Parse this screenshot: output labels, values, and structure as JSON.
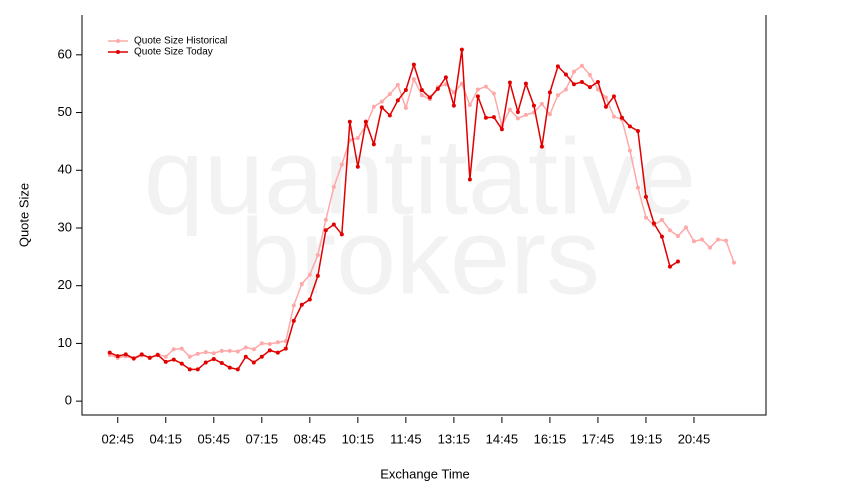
{
  "chart_data": {
    "type": "line",
    "watermark": [
      "quantitative",
      "brokers"
    ],
    "x_label": "Exchange Time",
    "y_label": "Quote Size",
    "x": [
      "02:30",
      "02:45",
      "03:00",
      "03:15",
      "03:30",
      "03:45",
      "04:00",
      "04:15",
      "04:30",
      "04:45",
      "05:00",
      "05:15",
      "05:30",
      "05:45",
      "06:00",
      "06:15",
      "06:30",
      "06:45",
      "07:00",
      "07:15",
      "07:30",
      "07:45",
      "08:00",
      "08:15",
      "08:30",
      "08:45",
      "09:00",
      "09:15",
      "09:30",
      "09:45",
      "10:00",
      "10:15",
      "10:30",
      "10:45",
      "11:00",
      "11:15",
      "11:30",
      "11:45",
      "12:00",
      "12:15",
      "12:30",
      "12:45",
      "13:00",
      "13:15",
      "13:30",
      "13:45",
      "14:00",
      "14:15",
      "14:30",
      "14:45",
      "15:00",
      "15:15",
      "15:30",
      "15:45",
      "16:00",
      "16:15",
      "16:30",
      "16:45",
      "17:00",
      "17:15",
      "17:30",
      "17:45",
      "18:00",
      "18:15",
      "18:30",
      "18:45",
      "19:00",
      "19:15",
      "19:30",
      "19:45",
      "20:00",
      "20:15",
      "20:30",
      "20:45",
      "21:00",
      "21:15",
      "21:30",
      "21:45",
      "22:00"
    ],
    "series": [
      {
        "name": "Quote Size Historical",
        "color": "#ffa8a8",
        "values": [
          8.0,
          7.5,
          7.8,
          7.3,
          7.9,
          7.6,
          8.1,
          7.7,
          9.0,
          9.1,
          7.7,
          8.2,
          8.5,
          8.3,
          8.7,
          8.7,
          8.6,
          9.3,
          9.0,
          10.0,
          9.9,
          10.2,
          10.4,
          16.6,
          20.3,
          21.9,
          25.3,
          31.4,
          37.1,
          41.0,
          45.2,
          45.6,
          47.7,
          51.0,
          51.9,
          53.2,
          54.8,
          50.8,
          55.8,
          53.0,
          52.3,
          54.4,
          54.9,
          53.5,
          55.0,
          51.3,
          54.0,
          54.5,
          53.3,
          47.7,
          50.5,
          49.0,
          49.6,
          50.0,
          51.5,
          49.7,
          53.0,
          54.0,
          57.1,
          58.1,
          56.5,
          54.0,
          52.6,
          49.3,
          48.8,
          43.4,
          37.0,
          31.8,
          30.5,
          31.4,
          29.6,
          28.6,
          30.1,
          27.7,
          28.0,
          26.6,
          28.0,
          27.8,
          24.0
        ]
      },
      {
        "name": "Quote Size Today",
        "color": "#e00000",
        "values": [
          8.4,
          7.8,
          8.1,
          7.4,
          8.1,
          7.5,
          8.0,
          6.8,
          7.2,
          6.5,
          5.5,
          5.5,
          6.7,
          7.3,
          6.6,
          5.8,
          5.5,
          7.7,
          6.7,
          7.7,
          8.8,
          8.4,
          9.1,
          13.9,
          16.7,
          17.6,
          21.7,
          29.6,
          30.6,
          28.9,
          48.4,
          40.6,
          48.4,
          44.5,
          50.9,
          49.5,
          52.1,
          53.9,
          58.3,
          53.9,
          52.6,
          54.1,
          56.1,
          51.2,
          60.9,
          38.4,
          52.8,
          49.1,
          49.2,
          47.1,
          55.2,
          50.1,
          55.0,
          51.2,
          44.1,
          53.5,
          58.0,
          56.6,
          54.9,
          55.3,
          54.4,
          55.3,
          51.0,
          52.8,
          49.1,
          47.6,
          46.8,
          35.4,
          30.8,
          28.5,
          23.3,
          24.2,
          null,
          null,
          null,
          null,
          null,
          null,
          null
        ]
      }
    ],
    "xlim": [
      "01:38",
      "23:00"
    ],
    "xticks": [
      "02:45",
      "04:15",
      "05:45",
      "07:15",
      "08:45",
      "10:15",
      "11:45",
      "13:15",
      "14:45",
      "16:15",
      "17:45",
      "19:15",
      "20:45"
    ],
    "ylim": [
      -2.4,
      66.9
    ],
    "yticks": [
      0,
      10,
      20,
      30,
      40,
      50,
      60
    ],
    "legend": "top-left"
  }
}
